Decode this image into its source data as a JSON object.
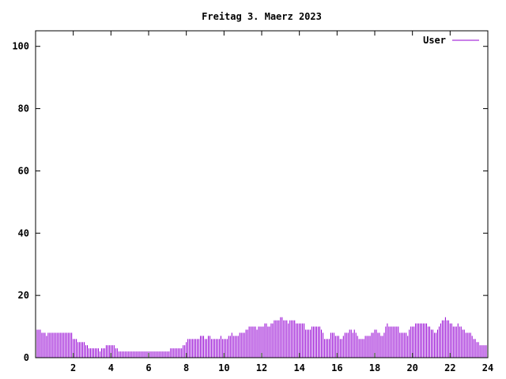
{
  "chart_data": {
    "type": "bar",
    "title": "Freitag 3. Maerz 2023",
    "xlabel": "",
    "ylabel": "",
    "xlim": [
      0,
      24
    ],
    "ylim": [
      0,
      105
    ],
    "xticks": [
      2,
      4,
      6,
      8,
      10,
      12,
      14,
      16,
      18,
      20,
      22,
      24
    ],
    "yticks": [
      0,
      20,
      40,
      60,
      80,
      100
    ],
    "grid": false,
    "legend_position": "top-right",
    "series": [
      {
        "name": "User",
        "color": "#9400d3",
        "interval_minutes": 5,
        "values": [
          9,
          9,
          9,
          9,
          8,
          8,
          8,
          7,
          8,
          8,
          8,
          8,
          8,
          8,
          8,
          8,
          8,
          8,
          8,
          8,
          8,
          8,
          8,
          8,
          6,
          6,
          6,
          5,
          5,
          5,
          5,
          5,
          4,
          4,
          3,
          3,
          3,
          3,
          3,
          3,
          3,
          2,
          3,
          3,
          3,
          4,
          4,
          4,
          4,
          4,
          4,
          3,
          3,
          2,
          2,
          2,
          2,
          2,
          2,
          2,
          2,
          2,
          2,
          2,
          2,
          2,
          2,
          2,
          2,
          2,
          2,
          2,
          2,
          2,
          2,
          2,
          2,
          2,
          2,
          2,
          2,
          2,
          2,
          2,
          2,
          2,
          3,
          3,
          3,
          3,
          3,
          3,
          3,
          3,
          4,
          4,
          5,
          6,
          6,
          6,
          6,
          6,
          6,
          6,
          6,
          7,
          7,
          7,
          6,
          6,
          7,
          7,
          6,
          6,
          6,
          6,
          6,
          6,
          7,
          6,
          6,
          6,
          6,
          7,
          7,
          8,
          7,
          7,
          7,
          7,
          8,
          8,
          8,
          8,
          9,
          9,
          10,
          10,
          10,
          10,
          10,
          9,
          10,
          10,
          10,
          10,
          11,
          11,
          10,
          10,
          11,
          11,
          12,
          12,
          12,
          12,
          13,
          13,
          12,
          12,
          12,
          11,
          12,
          12,
          12,
          12,
          11,
          11,
          11,
          11,
          11,
          11,
          9,
          9,
          9,
          9,
          10,
          10,
          10,
          10,
          10,
          10,
          9,
          8,
          6,
          6,
          6,
          6,
          8,
          8,
          8,
          7,
          7,
          7,
          6,
          6,
          7,
          8,
          8,
          8,
          9,
          9,
          8,
          9,
          8,
          7,
          6,
          6,
          6,
          6,
          7,
          7,
          7,
          7,
          8,
          8,
          9,
          9,
          8,
          8,
          7,
          7,
          8,
          10,
          11,
          10,
          10,
          10,
          10,
          10,
          10,
          10,
          8,
          8,
          8,
          8,
          8,
          7,
          9,
          10,
          10,
          10,
          11,
          11,
          11,
          11,
          11,
          11,
          11,
          11,
          10,
          10,
          9,
          9,
          8,
          8,
          9,
          10,
          11,
          12,
          12,
          13,
          12,
          12,
          11,
          11,
          10,
          10,
          10,
          11,
          10,
          10,
          9,
          9,
          8,
          8,
          8,
          8,
          7,
          6,
          6,
          5,
          5,
          4,
          4,
          4,
          4,
          4
        ]
      }
    ]
  }
}
